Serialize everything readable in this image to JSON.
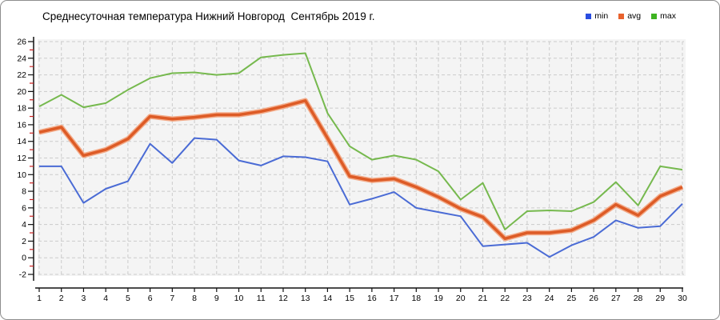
{
  "title": "Среднесуточная температура Нижний Новгород  Сентябрь 2019 г.",
  "legend": [
    {
      "label": "min",
      "color": "#2a4de0"
    },
    {
      "label": "avg",
      "color": "#e8622d"
    },
    {
      "label": "max",
      "color": "#3eb321"
    }
  ],
  "chart_data": {
    "type": "line",
    "title": "Среднесуточная температура Нижний Новгород  Сентябрь 2019 г.",
    "xlabel": "",
    "ylabel": "",
    "x": [
      1,
      2,
      3,
      4,
      5,
      6,
      7,
      8,
      9,
      10,
      11,
      12,
      13,
      14,
      15,
      16,
      17,
      18,
      19,
      20,
      21,
      22,
      23,
      24,
      25,
      26,
      27,
      28,
      29,
      30
    ],
    "series": [
      {
        "name": "min",
        "color": "#4a6bd5",
        "width": 2,
        "values": [
          11.0,
          11.0,
          6.6,
          8.3,
          9.2,
          13.7,
          11.4,
          14.4,
          14.2,
          11.7,
          11.1,
          12.2,
          12.1,
          11.6,
          6.4,
          7.1,
          7.9,
          6.0,
          5.5,
          5.0,
          1.4,
          1.6,
          1.8,
          0.1,
          1.5,
          2.5,
          4.5,
          3.6,
          3.8,
          6.5
        ]
      },
      {
        "name": "avg",
        "color": "#dd5b26",
        "width": 3.5,
        "halo": "#f3ab89",
        "values": [
          15.1,
          15.7,
          12.3,
          13.0,
          14.3,
          17.0,
          16.7,
          16.9,
          17.2,
          17.2,
          17.6,
          18.2,
          18.9,
          14.4,
          9.8,
          9.3,
          9.5,
          8.5,
          7.3,
          5.9,
          4.9,
          2.3,
          3.0,
          3.0,
          3.3,
          4.5,
          6.4,
          5.1,
          7.4,
          8.5
        ]
      },
      {
        "name": "max",
        "color": "#76b94e",
        "width": 2,
        "values": [
          18.2,
          19.6,
          18.1,
          18.6,
          20.2,
          21.6,
          22.2,
          22.3,
          22.0,
          22.2,
          24.1,
          24.4,
          24.6,
          17.4,
          13.4,
          11.8,
          12.3,
          11.8,
          10.4,
          7.0,
          9.0,
          3.4,
          5.6,
          5.7,
          5.6,
          6.7,
          9.1,
          6.3,
          11.0,
          10.6
        ]
      }
    ],
    "ylim": [
      -2,
      26
    ],
    "y_tick_step": 2,
    "y_minor_tick_color": "#c22",
    "axis_color": "#111111",
    "grid": "dashed",
    "grid_color": "#cbcbcb",
    "plot_bg": "#f4f4f4",
    "legend_position": "top-right"
  }
}
